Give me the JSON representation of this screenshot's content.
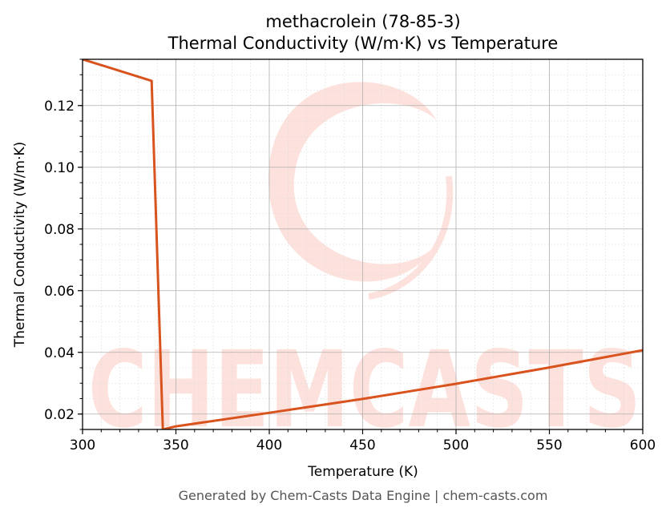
{
  "chart_data": {
    "type": "line",
    "title": "methacrolein (78-85-3)",
    "subtitle": "Thermal Conductivity (W/m·K) vs Temperature",
    "xlabel": "Temperature (K)",
    "ylabel": "Thermal Conductivity (W/m·K)",
    "xlim": [
      300,
      600
    ],
    "ylim": [
      0.015,
      0.135
    ],
    "xticks": [
      300,
      350,
      400,
      450,
      500,
      550,
      600
    ],
    "yticks": [
      0.02,
      0.04,
      0.06,
      0.08,
      0.1,
      0.12
    ],
    "ytick_labels": [
      "0.02",
      "0.04",
      "0.06",
      "0.08",
      "0.10",
      "0.12"
    ],
    "grid": true,
    "series": [
      {
        "color": "#d9531e",
        "x": [
          300,
          337,
          343,
          350,
          400,
          450,
          500,
          550,
          600
        ],
        "y": [
          0.135,
          0.128,
          0.015,
          0.016,
          0.0204,
          0.0249,
          0.0298,
          0.0351,
          0.0407
        ]
      }
    ]
  },
  "watermark": {
    "text": "CHEMCASTS",
    "color": "#fde1dc"
  },
  "footer": "Generated by Chem-Casts Data Engine | chem-casts.com"
}
